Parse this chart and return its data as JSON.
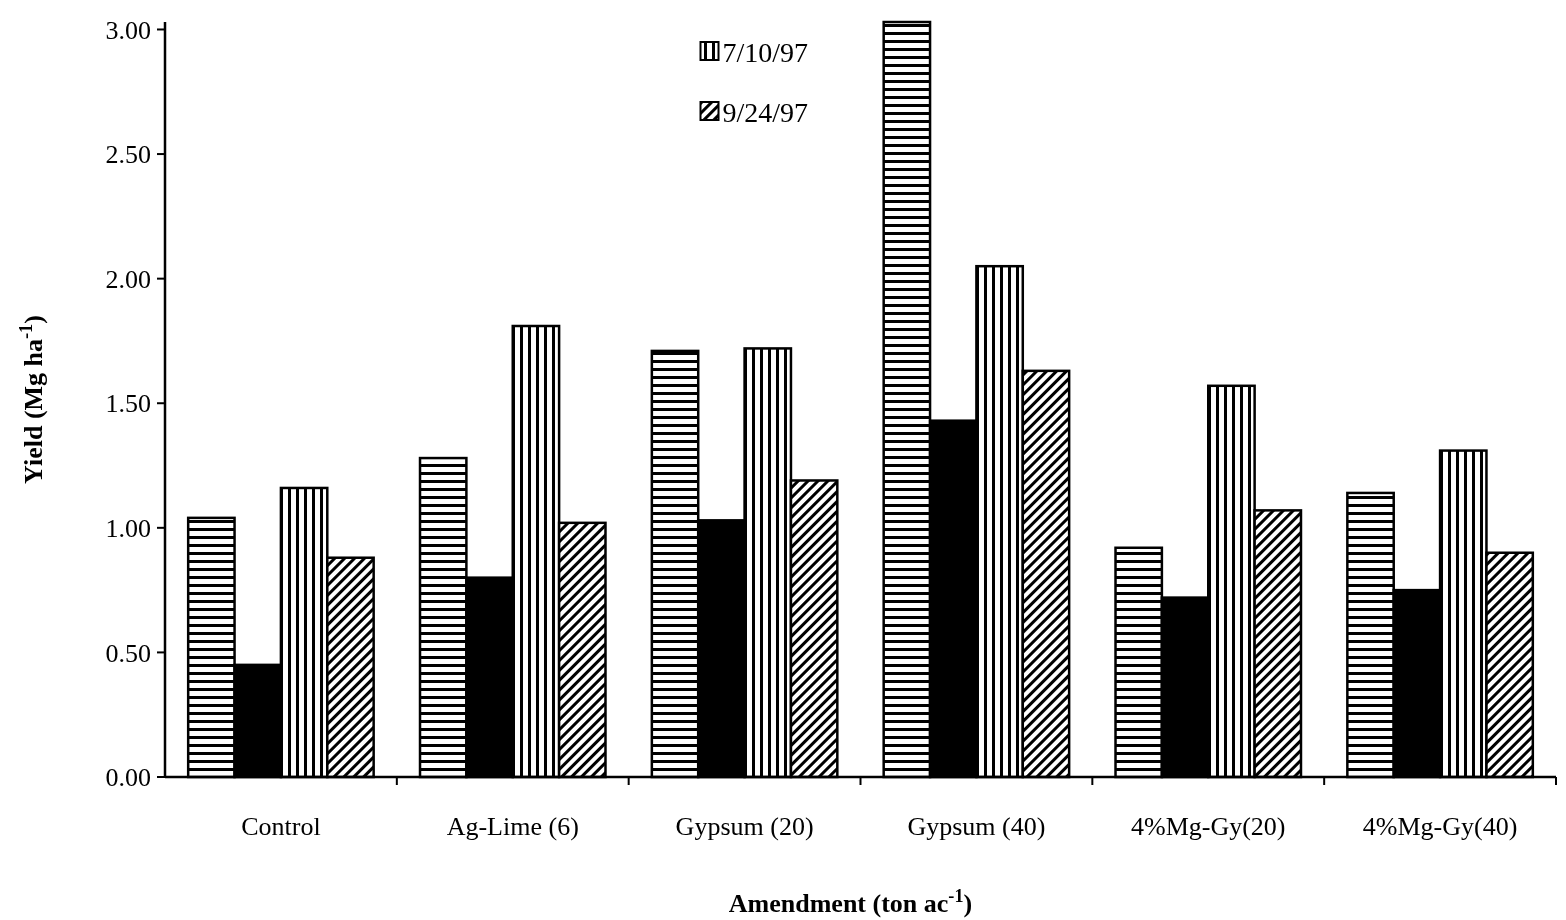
{
  "chart_data": {
    "type": "bar",
    "xlabel": "Amendment (ton ac$^{-1}$)",
    "ylabel": "Yield (Mg ha$^{-1}$)",
    "categories": [
      "Control",
      "Ag-Lime (6)",
      "Gypsum (20)",
      "Gypsum (40)",
      "4%Mg-Gy(20)",
      "4%Mg-Gy(40)"
    ],
    "series": [
      {
        "color": "#000000",
        "values": [
          1.04,
          1.28,
          1.71,
          3.03,
          0.92,
          1.14
        ]
      },
      {
        "color": "#000000",
        "values": [
          0.45,
          0.8,
          1.03,
          1.43,
          0.72,
          0.75
        ]
      },
      {
        "name": "7/10/97",
        "color": "#000000",
        "values": [
          1.16,
          1.81,
          1.72,
          2.05,
          1.57,
          1.31
        ]
      },
      {
        "name": "9/24/97",
        "color": "#000000",
        "values": [
          0.88,
          1.02,
          1.19,
          1.63,
          1.07,
          0.9
        ]
      }
    ],
    "ylim": [
      0,
      3.03
    ],
    "yticks": [
      {
        "value": 0,
        "label": "0.00"
      },
      {
        "value": 0.5,
        "label": "0.50"
      },
      {
        "value": 1,
        "label": "1.00"
      },
      {
        "value": 1.5,
        "label": "1.50"
      },
      {
        "value": 2,
        "label": "2.00"
      },
      {
        "value": 2.5,
        "label": "2.50"
      },
      {
        "value": 3,
        "label": "3.00"
      }
    ],
    "legend": "top",
    "grid": false
  }
}
